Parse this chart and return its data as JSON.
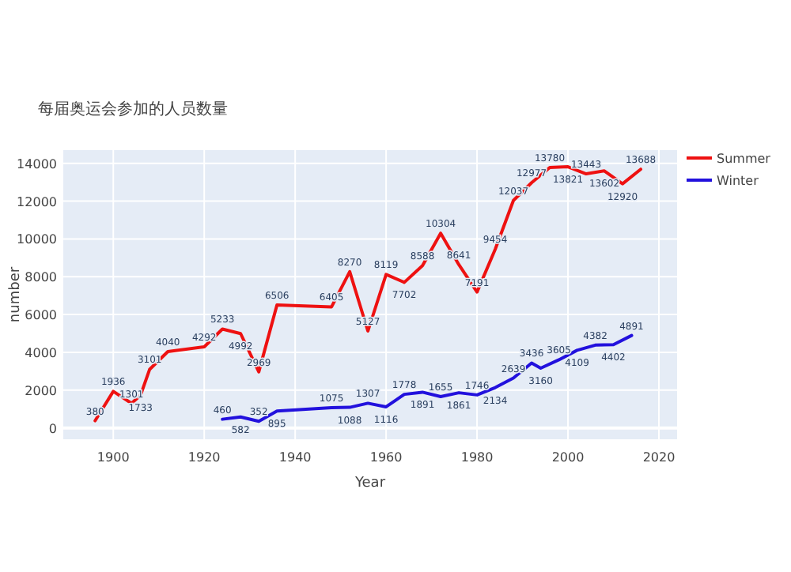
{
  "chart_data": {
    "type": "line",
    "title": "每届奥运会参加的人员数量",
    "xlabel": "Year",
    "ylabel": "number",
    "xlim": [
      1889,
      2024
    ],
    "xticks": [
      1900,
      1920,
      1940,
      1960,
      1980,
      2000,
      2020
    ],
    "ylim": [
      -600,
      14700
    ],
    "yticks": [
      0,
      2000,
      4000,
      6000,
      8000,
      10000,
      12000,
      14000
    ],
    "grid": true,
    "legend": "top right",
    "data_labels": true,
    "marker": "none",
    "line_style": "solid",
    "series": [
      {
        "name": "Summer",
        "color": "#ee1111",
        "x": [
          1896,
          1900,
          1904,
          1906,
          1908,
          1912,
          1920,
          1924,
          1928,
          1932,
          1936,
          1948,
          1952,
          1956,
          1960,
          1964,
          1968,
          1972,
          1976,
          1980,
          1984,
          1988,
          1992,
          1996,
          2000,
          2004,
          2008,
          2012,
          2016
        ],
        "values": [
          380,
          1936,
          1301,
          1733,
          3101,
          4040,
          4292,
          5233,
          4992,
          2969,
          6506,
          6405,
          8270,
          5127,
          8119,
          7702,
          8588,
          10304,
          8641,
          7191,
          9454,
          12037,
          12977,
          13780,
          13821,
          13443,
          13602,
          12920,
          13688
        ]
      },
      {
        "name": "Winter",
        "color": "#2211dd",
        "x": [
          1924,
          1928,
          1932,
          1936,
          1948,
          1952,
          1956,
          1960,
          1964,
          1968,
          1972,
          1976,
          1980,
          1984,
          1988,
          1992,
          1994,
          1998,
          2002,
          2006,
          2010,
          2014
        ],
        "values": [
          460,
          582,
          352,
          895,
          1075,
          1088,
          1307,
          1116,
          1778,
          1891,
          1655,
          1861,
          1746,
          2134,
          2639,
          3436,
          3160,
          3605,
          4109,
          4382,
          4402,
          4891
        ]
      }
    ]
  }
}
